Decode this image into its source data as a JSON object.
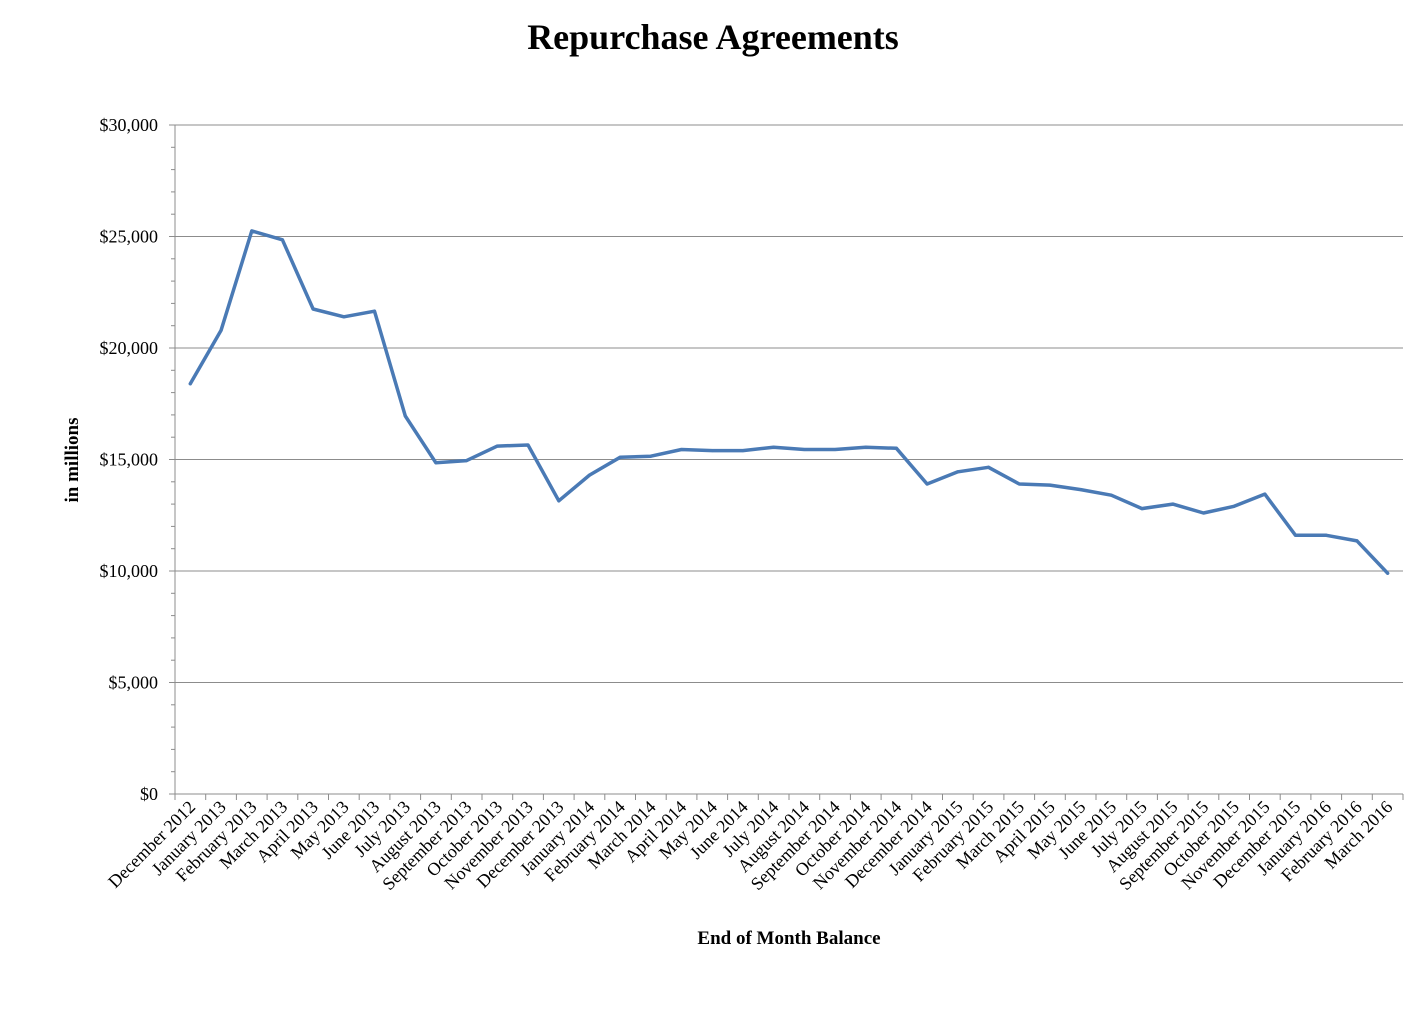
{
  "chart_data": {
    "type": "line",
    "title": "Repurchase Agreements",
    "xlabel": "End of Month Balance",
    "ylabel": "in millions",
    "ylim": [
      0,
      30000
    ],
    "y_ticks": [
      "$0",
      "$5,000",
      "$10,000",
      "$15,000",
      "$20,000",
      "$25,000",
      "$30,000"
    ],
    "grid": true,
    "legend": "none",
    "line_color": "#4a7ab5",
    "categories": [
      "December 2012",
      "January 2013",
      "February 2013",
      "March 2013",
      "April 2013",
      "May 2013",
      "June 2013",
      "July 2013",
      "August 2013",
      "September 2013",
      "October 2013",
      "November 2013",
      "December 2013",
      "January 2014",
      "February 2014",
      "March 2014",
      "April 2014",
      "May 2014",
      "June 2014",
      "July 2014",
      "August 2014",
      "September 2014",
      "October 2014",
      "November 2014",
      "December 2014",
      "January 2015",
      "February 2015",
      "March 2015",
      "April 2015",
      "May 2015",
      "June 2015",
      "July 2015",
      "August 2015",
      "September 2015",
      "October 2015",
      "November 2015",
      "December 2015",
      "January 2016",
      "February 2016",
      "March 2016"
    ],
    "series": [
      {
        "values": [
          18400,
          20800,
          25250,
          24850,
          21750,
          21400,
          21650,
          16950,
          14850,
          14950,
          15600,
          15650,
          13150,
          14300,
          15100,
          15150,
          15450,
          15400,
          15400,
          15550,
          15450,
          15450,
          15550,
          15500,
          13900,
          14450,
          14650,
          13900,
          13850,
          13650,
          13400,
          12800,
          13000,
          12600,
          12900,
          13450,
          11600,
          11600,
          11350,
          9900
        ]
      }
    ]
  }
}
